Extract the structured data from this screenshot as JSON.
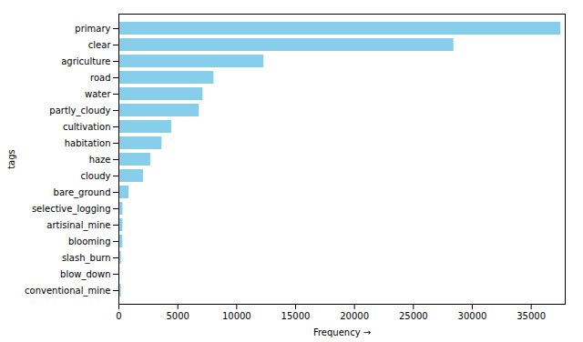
{
  "chart_data": {
    "type": "bar",
    "orientation": "horizontal",
    "categories": [
      "conventional_mine",
      "blow_down",
      "slash_burn",
      "blooming",
      "artisinal_mine",
      "selective_logging",
      "bare_ground",
      "cloudy",
      "haze",
      "habitation",
      "cultivation",
      "partly_cloudy",
      "water",
      "road",
      "agriculture",
      "clear",
      "primary"
    ],
    "values": [
      200,
      98,
      209,
      332,
      339,
      340,
      862,
      2089,
      2697,
      3660,
      4477,
      6823,
      7140,
      8071,
      12315,
      28431,
      37513
    ],
    "color": "#87CEEB",
    "xlabel": "Frequency",
    "ylabel": "tags",
    "xlim": [
      0,
      37888.13
    ],
    "xticks": [
      0,
      5000,
      10000,
      15000,
      20000,
      25000,
      30000,
      35000
    ]
  }
}
